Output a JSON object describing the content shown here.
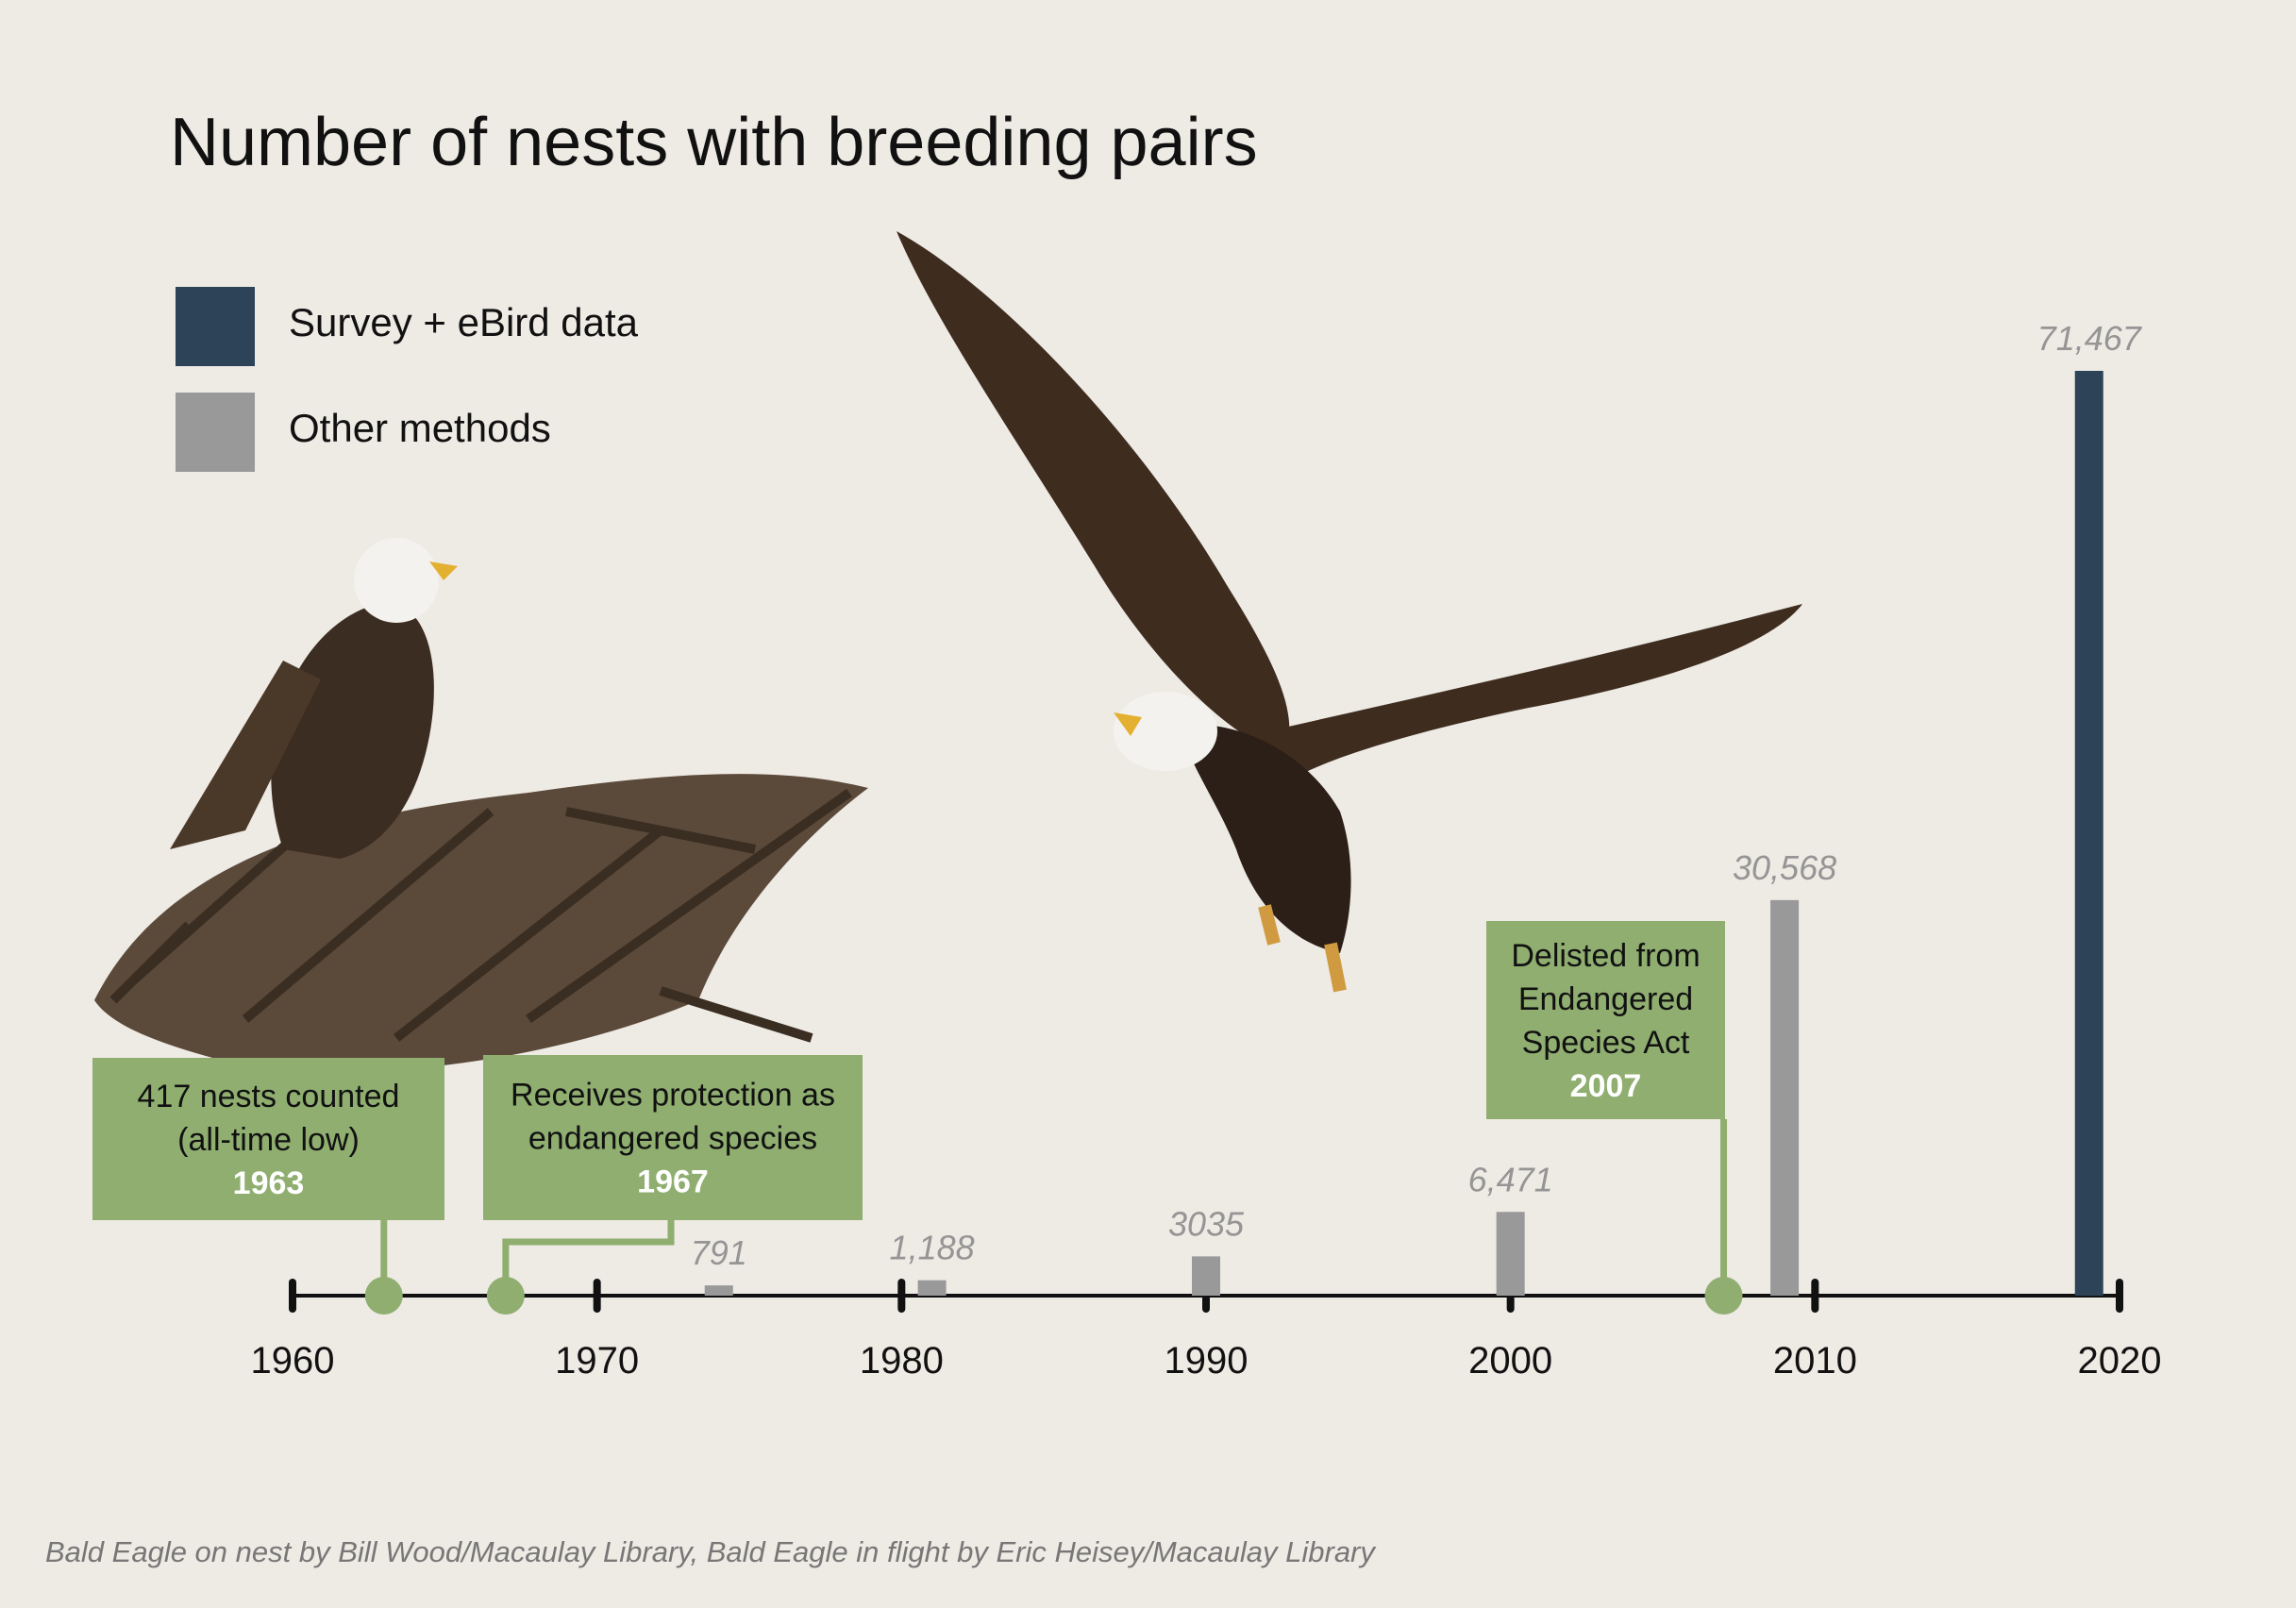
{
  "chart_data": {
    "type": "bar",
    "title": "Number of nests with breeding pairs",
    "legend": [
      {
        "label": "Survey + eBird data",
        "color": "#2c4358"
      },
      {
        "label": "Other methods",
        "color": "#999999"
      }
    ],
    "legend_placement": "top-left",
    "x_ticks": [
      "1960",
      "1970",
      "1980",
      "1990",
      "2000",
      "2010",
      "2020"
    ],
    "xlim": [
      1960,
      2020
    ],
    "grid": false,
    "bars": [
      {
        "year": 1974,
        "value": 791,
        "label": "791",
        "series": "Other methods"
      },
      {
        "year": 1981,
        "value": 1188,
        "label": "1,188",
        "series": "Other methods"
      },
      {
        "year": 1990,
        "value": 3035,
        "label": "3035",
        "series": "Other methods"
      },
      {
        "year": 2000,
        "value": 6471,
        "label": "6,471",
        "series": "Other methods"
      },
      {
        "year": 2009,
        "value": 30568,
        "label": "30,568",
        "series": "Other methods"
      },
      {
        "year": 2019,
        "value": 71467,
        "label": "71,467",
        "series": "Survey + eBird data"
      }
    ],
    "events": [
      {
        "year": 1963,
        "lines": [
          "417 nests counted",
          "(all-time low)"
        ],
        "year_label": "1963"
      },
      {
        "year": 1967,
        "lines": [
          "Receives protection as",
          "endangered species"
        ],
        "year_label": "1967"
      },
      {
        "year": 2007,
        "lines": [
          "Delisted from",
          "Endangered",
          "Species Act"
        ],
        "year_label": "2007"
      }
    ],
    "event_color": "#8fae70"
  },
  "caption": "Bald Eagle on nest by Bill Wood/Macaulay Library, Bald Eagle in flight by Eric Heisey/Macaulay Library",
  "images": [
    "bald-eagle-on-nest",
    "bald-eagle-in-flight"
  ]
}
